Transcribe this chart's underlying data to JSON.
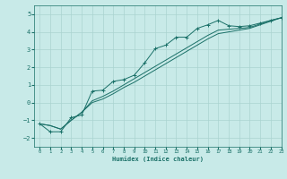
{
  "xlabel": "Humidex (Indice chaleur)",
  "ylabel": "",
  "background_color": "#c8eae8",
  "grid_color": "#aad4d0",
  "line_color": "#1a7068",
  "xlim": [
    -0.5,
    23
  ],
  "ylim": [
    -2.5,
    5.5
  ],
  "yticks": [
    -2,
    -1,
    0,
    1,
    2,
    3,
    4,
    5
  ],
  "xticks": [
    0,
    1,
    2,
    3,
    4,
    5,
    6,
    7,
    8,
    9,
    10,
    11,
    12,
    13,
    14,
    15,
    16,
    17,
    18,
    19,
    20,
    21,
    22,
    23
  ],
  "line1_x": [
    0,
    1,
    2,
    3,
    4,
    5,
    6,
    7,
    8,
    9,
    10,
    11,
    12,
    13,
    14,
    15,
    16,
    17,
    18,
    19,
    20,
    21,
    22,
    23
  ],
  "line1_y": [
    -1.2,
    -1.65,
    -1.65,
    -0.85,
    -0.7,
    0.65,
    0.7,
    1.2,
    1.3,
    1.55,
    2.25,
    3.05,
    3.25,
    3.7,
    3.7,
    4.2,
    4.4,
    4.65,
    4.35,
    4.3,
    4.35,
    4.5,
    4.65,
    4.8
  ],
  "line2_x": [
    0,
    1,
    2,
    3,
    4,
    5,
    6,
    7,
    8,
    9,
    10,
    11,
    12,
    13,
    14,
    15,
    16,
    17,
    18,
    19,
    20,
    21,
    22,
    23
  ],
  "line2_y": [
    -1.2,
    -1.3,
    -1.5,
    -1.0,
    -0.55,
    0.1,
    0.35,
    0.65,
    1.0,
    1.35,
    1.7,
    2.05,
    2.4,
    2.75,
    3.1,
    3.45,
    3.8,
    4.1,
    4.15,
    4.2,
    4.25,
    4.45,
    4.65,
    4.8
  ],
  "line3_x": [
    0,
    1,
    2,
    3,
    4,
    5,
    6,
    7,
    8,
    9,
    10,
    11,
    12,
    13,
    14,
    15,
    16,
    17,
    18,
    19,
    20,
    21,
    22,
    23
  ],
  "line3_y": [
    -1.2,
    -1.3,
    -1.5,
    -1.0,
    -0.55,
    0.0,
    0.2,
    0.5,
    0.85,
    1.15,
    1.5,
    1.85,
    2.2,
    2.55,
    2.9,
    3.25,
    3.6,
    3.9,
    4.0,
    4.1,
    4.2,
    4.4,
    4.6,
    4.8
  ]
}
